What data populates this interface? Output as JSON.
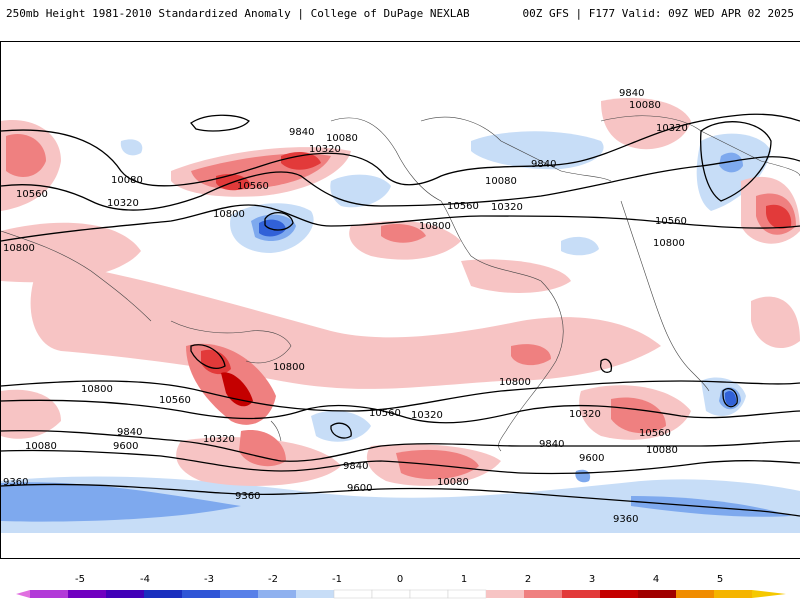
{
  "header": {
    "title": "250mb Height 1981-2010 Standardized Anomaly | College of DuPage NEXLAB",
    "run_info": "00Z GFS | F177 Valid: 09Z WED APR 02 2025"
  },
  "colors": {
    "pos1": "#f7c4c4",
    "pos2": "#ef8080",
    "pos3": "#e23a3a",
    "pos4": "#c40000",
    "pos5": "#f5a000",
    "neg1": "#c7ddf7",
    "neg2": "#7ea9ee",
    "neg3": "#3161d8",
    "neg4": "#1a2fbf",
    "neg5": "#9a1cc8",
    "contour": "#000000",
    "coast": "#333333"
  },
  "contour_labels": [
    {
      "text": "9840"
    },
    {
      "text": "10080"
    },
    {
      "text": "10320"
    },
    {
      "text": "9840"
    },
    {
      "text": "9840"
    },
    {
      "text": "10080"
    },
    {
      "text": "10320"
    },
    {
      "text": "10560"
    },
    {
      "text": "10080"
    },
    {
      "text": "10320"
    },
    {
      "text": "10560"
    },
    {
      "text": "10800"
    },
    {
      "text": "10800"
    },
    {
      "text": "10080"
    },
    {
      "text": "10560"
    },
    {
      "text": "10320"
    },
    {
      "text": "10800"
    },
    {
      "text": "10560"
    },
    {
      "text": "10800"
    },
    {
      "text": "10800"
    },
    {
      "text": "10800"
    },
    {
      "text": "10800"
    },
    {
      "text": "10560"
    },
    {
      "text": "10320"
    },
    {
      "text": "10560"
    },
    {
      "text": "10320"
    },
    {
      "text": "10320"
    },
    {
      "text": "10560"
    },
    {
      "text": "10080"
    },
    {
      "text": "9840"
    },
    {
      "text": "9600"
    },
    {
      "text": "9840"
    },
    {
      "text": "9600"
    },
    {
      "text": "10080"
    },
    {
      "text": "9840"
    },
    {
      "text": "9600"
    },
    {
      "text": "10080"
    },
    {
      "text": "9360"
    },
    {
      "text": "9360"
    },
    {
      "text": "9360"
    }
  ],
  "colorbar": {
    "ticks": [
      "-5",
      "-4",
      "-3",
      "-2",
      "-1",
      "0",
      "1",
      "2",
      "3",
      "4",
      "5"
    ]
  }
}
